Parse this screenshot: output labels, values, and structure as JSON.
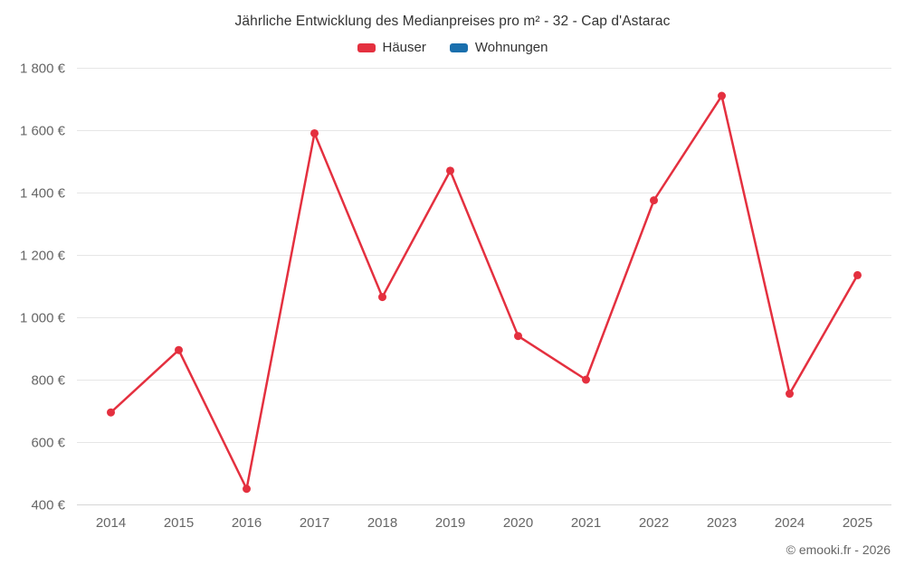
{
  "title": "Jährliche Entwicklung des Medianpreises pro m² - 32 - Cap d'Astarac",
  "legend": [
    {
      "label": "Häuser",
      "color": "#e4303f"
    },
    {
      "label": "Wohnungen",
      "color": "#1a6fad"
    }
  ],
  "footer": {
    "copyright": "© emooki.fr - 2026"
  },
  "chart_data": {
    "type": "line",
    "title": "Jährliche Entwicklung des Medianpreises pro m² - 32 - Cap d'Astarac",
    "categories": [
      "2014",
      "2015",
      "2016",
      "2017",
      "2018",
      "2019",
      "2020",
      "2021",
      "2022",
      "2023",
      "2024",
      "2025"
    ],
    "series": [
      {
        "name": "Häuser",
        "color": "#e4303f",
        "values": [
          695,
          895,
          450,
          1590,
          1065,
          1470,
          940,
          800,
          1375,
          1710,
          755,
          1135
        ]
      },
      {
        "name": "Wohnungen",
        "color": "#1a6fad",
        "values": []
      }
    ],
    "xlabel": "",
    "ylabel": "",
    "ylim": [
      400,
      1800
    ],
    "ytick_step": 200,
    "ytick_suffix": " €",
    "grid": "horizontal",
    "legend_position": "top"
  }
}
